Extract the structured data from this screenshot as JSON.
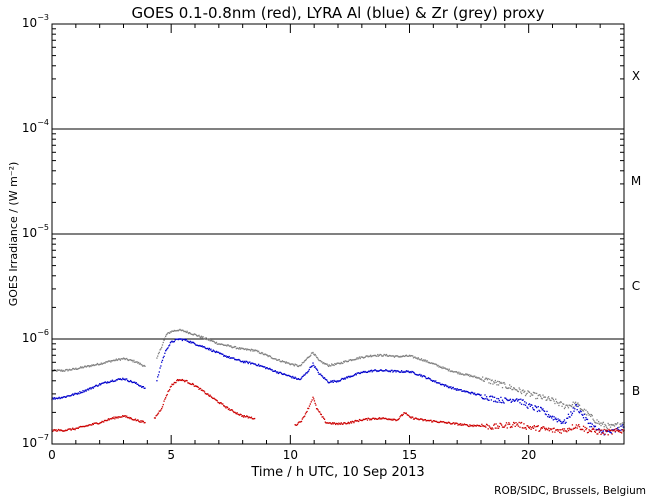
{
  "chart_data": {
    "type": "scatter",
    "title": "GOES 0.1-0.8nm (red), LYRA Al (blue) & Zr (grey) proxy",
    "xlabel": "Time / h UTC, 10 Sep 2013",
    "ylabel": "GOES Irradiance / (W m⁻²)",
    "xlim": [
      0,
      24
    ],
    "ylim": [
      1e-07,
      0.001
    ],
    "yscale": "log",
    "x_ticks": [
      {
        "value": 0,
        "label": "0"
      },
      {
        "value": 5,
        "label": "5"
      },
      {
        "value": 10,
        "label": "10"
      },
      {
        "value": 15,
        "label": "15"
      },
      {
        "value": 20,
        "label": "20"
      }
    ],
    "y_ticks": [
      {
        "value": 1e-07,
        "base": "10",
        "exp": "−7"
      },
      {
        "value": 1e-06,
        "base": "10",
        "exp": "−6"
      },
      {
        "value": 1e-05,
        "base": "10",
        "exp": "−5"
      },
      {
        "value": 0.0001,
        "base": "10",
        "exp": "−4"
      },
      {
        "value": 0.001,
        "base": "10",
        "exp": "−3"
      }
    ],
    "class_lines": [
      1e-06,
      1e-05,
      0.0001
    ],
    "flare_classes": [
      {
        "label": "X",
        "value": 0.00032
      },
      {
        "label": "M",
        "value": 3.2e-05
      },
      {
        "label": "C",
        "value": 3.2e-06
      },
      {
        "label": "B",
        "value": 3.2e-07
      }
    ],
    "series": [
      {
        "name": "Zr proxy",
        "color": "#808080",
        "segments": [
          [
            [
              0,
              5e-07
            ],
            [
              0.5,
              5e-07
            ],
            [
              1.0,
              5.2e-07
            ],
            [
              1.5,
              5.5e-07
            ],
            [
              2.0,
              5.8e-07
            ],
            [
              2.5,
              6.2e-07
            ],
            [
              3.0,
              6.5e-07
            ],
            [
              3.5,
              6.1e-07
            ],
            [
              3.9,
              5.5e-07
            ]
          ],
          [
            [
              4.4,
              6.5e-07
            ],
            [
              4.6,
              8.5e-07
            ],
            [
              4.8,
              1.1e-06
            ],
            [
              5.0,
              1.18e-06
            ],
            [
              5.3,
              1.22e-06
            ],
            [
              5.6,
              1.18e-06
            ],
            [
              6.0,
              1.1e-06
            ],
            [
              6.5,
              1e-06
            ],
            [
              7.0,
              9e-07
            ],
            [
              7.5,
              8.5e-07
            ],
            [
              8.0,
              8e-07
            ],
            [
              8.5,
              7.8e-07
            ],
            [
              9.0,
              7e-07
            ],
            [
              9.5,
              6.3e-07
            ],
            [
              10.0,
              5.8e-07
            ],
            [
              10.4,
              5.5e-07
            ],
            [
              10.7,
              6.5e-07
            ],
            [
              10.95,
              7.5e-07
            ],
            [
              11.2,
              6.2e-07
            ],
            [
              11.6,
              5.6e-07
            ],
            [
              12.0,
              5.8e-07
            ],
            [
              12.5,
              6.3e-07
            ],
            [
              13.0,
              6.7e-07
            ],
            [
              13.5,
              7e-07
            ],
            [
              14.0,
              7e-07
            ],
            [
              14.5,
              6.8e-07
            ],
            [
              15.0,
              6.9e-07
            ],
            [
              15.5,
              6.4e-07
            ],
            [
              16.0,
              5.8e-07
            ],
            [
              16.5,
              5.2e-07
            ],
            [
              17.0,
              4.8e-07
            ],
            [
              17.5,
              4.5e-07
            ],
            [
              18.0,
              4.2e-07
            ],
            [
              18.5,
              3.9e-07
            ],
            [
              19.0,
              3.6e-07
            ],
            [
              19.5,
              3.3e-07
            ],
            [
              20.0,
              3e-07
            ],
            [
              20.5,
              2.8e-07
            ],
            [
              21.0,
              2.6e-07
            ],
            [
              21.5,
              2.3e-07
            ],
            [
              22.0,
              2.4e-07
            ],
            [
              22.5,
              1.9e-07
            ],
            [
              23.0,
              1.55e-07
            ],
            [
              23.5,
              1.45e-07
            ],
            [
              24.0,
              1.6e-07
            ]
          ]
        ]
      },
      {
        "name": "Al proxy",
        "color": "#0000cc",
        "segments": [
          [
            [
              0,
              2.7e-07
            ],
            [
              0.5,
              2.8e-07
            ],
            [
              1.0,
              3e-07
            ],
            [
              1.5,
              3.3e-07
            ],
            [
              2.0,
              3.7e-07
            ],
            [
              2.5,
              4e-07
            ],
            [
              3.0,
              4.2e-07
            ],
            [
              3.5,
              3.8e-07
            ],
            [
              3.9,
              3.4e-07
            ]
          ],
          [
            [
              4.4,
              4e-07
            ],
            [
              4.6,
              6e-07
            ],
            [
              4.8,
              8e-07
            ],
            [
              5.0,
              9.3e-07
            ],
            [
              5.3,
              1e-06
            ],
            [
              5.6,
              9.8e-07
            ],
            [
              6.0,
              9e-07
            ],
            [
              6.5,
              8.2e-07
            ],
            [
              7.0,
              7.3e-07
            ],
            [
              7.5,
              6.6e-07
            ],
            [
              8.0,
              6.1e-07
            ],
            [
              8.5,
              5.8e-07
            ],
            [
              9.0,
              5.3e-07
            ],
            [
              9.5,
              4.8e-07
            ],
            [
              10.0,
              4.4e-07
            ],
            [
              10.4,
              4.1e-07
            ],
            [
              10.7,
              4.8e-07
            ],
            [
              10.95,
              5.8e-07
            ],
            [
              11.2,
              4.7e-07
            ],
            [
              11.6,
              3.9e-07
            ],
            [
              12.0,
              4e-07
            ],
            [
              12.5,
              4.4e-07
            ],
            [
              13.0,
              4.8e-07
            ],
            [
              13.5,
              5e-07
            ],
            [
              14.0,
              5e-07
            ],
            [
              14.5,
              4.9e-07
            ],
            [
              15.0,
              4.9e-07
            ],
            [
              15.5,
              4.5e-07
            ],
            [
              16.0,
              4e-07
            ],
            [
              16.5,
              3.6e-07
            ],
            [
              17.0,
              3.3e-07
            ],
            [
              17.5,
              3.1e-07
            ],
            [
              18.0,
              2.9e-07
            ],
            [
              18.5,
              2.7e-07
            ],
            [
              19.0,
              2.6e-07
            ],
            [
              19.5,
              2.7e-07
            ],
            [
              20.0,
              2.3e-07
            ],
            [
              20.5,
              2.1e-07
            ],
            [
              21.0,
              1.8e-07
            ],
            [
              21.5,
              1.6e-07
            ],
            [
              22.0,
              2.3e-07
            ],
            [
              22.5,
              1.6e-07
            ],
            [
              23.0,
              1.3e-07
            ],
            [
              23.5,
              1.3e-07
            ],
            [
              24.0,
              1.45e-07
            ]
          ]
        ]
      },
      {
        "name": "GOES 0.1-0.8nm",
        "color": "#cc0000",
        "segments": [
          [
            [
              0,
              1.35e-07
            ],
            [
              0.5,
              1.35e-07
            ],
            [
              1.0,
              1.4e-07
            ],
            [
              1.5,
              1.5e-07
            ],
            [
              2.0,
              1.6e-07
            ],
            [
              2.5,
              1.75e-07
            ],
            [
              3.0,
              1.85e-07
            ],
            [
              3.5,
              1.7e-07
            ],
            [
              3.9,
              1.6e-07
            ]
          ],
          [
            [
              4.3,
              1.75e-07
            ],
            [
              4.6,
              2.2e-07
            ],
            [
              4.8,
              2.9e-07
            ],
            [
              5.0,
              3.6e-07
            ],
            [
              5.3,
              4.1e-07
            ],
            [
              5.6,
              4e-07
            ],
            [
              6.0,
              3.6e-07
            ],
            [
              6.5,
              3e-07
            ],
            [
              7.0,
              2.5e-07
            ],
            [
              7.5,
              2.1e-07
            ],
            [
              8.0,
              1.85e-07
            ],
            [
              8.5,
              1.75e-07
            ]
          ],
          [
            [
              10.2,
              1.5e-07
            ],
            [
              10.5,
              1.7e-07
            ],
            [
              10.8,
              2.3e-07
            ],
            [
              10.95,
              2.8e-07
            ],
            [
              11.1,
              2.2e-07
            ],
            [
              11.5,
              1.6e-07
            ],
            [
              12.0,
              1.55e-07
            ],
            [
              12.5,
              1.6e-07
            ],
            [
              13.0,
              1.7e-07
            ],
            [
              13.5,
              1.75e-07
            ],
            [
              14.0,
              1.75e-07
            ],
            [
              14.5,
              1.7e-07
            ],
            [
              14.8,
              2e-07
            ],
            [
              15.0,
              1.8e-07
            ],
            [
              15.5,
              1.7e-07
            ],
            [
              16.0,
              1.65e-07
            ],
            [
              16.5,
              1.6e-07
            ],
            [
              17.0,
              1.55e-07
            ],
            [
              17.5,
              1.5e-07
            ],
            [
              18.0,
              1.5e-07
            ],
            [
              18.5,
              1.45e-07
            ],
            [
              19.0,
              1.5e-07
            ],
            [
              19.5,
              1.55e-07
            ],
            [
              20.0,
              1.45e-07
            ],
            [
              20.5,
              1.4e-07
            ],
            [
              21.0,
              1.35e-07
            ],
            [
              21.5,
              1.35e-07
            ],
            [
              22.0,
              1.5e-07
            ],
            [
              22.5,
              1.35e-07
            ],
            [
              23.0,
              1.3e-07
            ],
            [
              23.5,
              1.3e-07
            ],
            [
              24.0,
              1.35e-07
            ]
          ]
        ]
      }
    ],
    "credit": "ROB/SIDC, Brussels, Belgium"
  }
}
